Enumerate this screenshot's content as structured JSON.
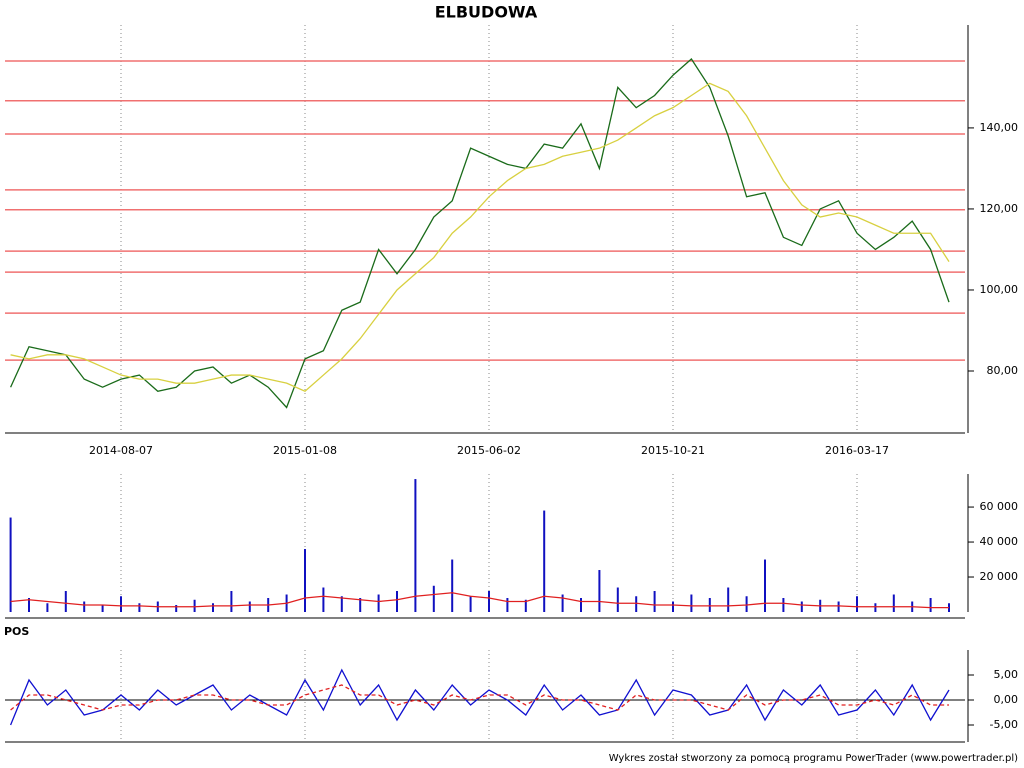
{
  "chart_data": [
    {
      "type": "line",
      "title": "ELBUDOWA",
      "categories": [
        null,
        null,
        null,
        null,
        null,
        null,
        "2014-08-07",
        null,
        null,
        null,
        null,
        null,
        null,
        null,
        null,
        null,
        "2015-01-08",
        null,
        null,
        null,
        null,
        null,
        null,
        null,
        null,
        null,
        "2015-06-02",
        null,
        null,
        null,
        null,
        null,
        null,
        null,
        null,
        null,
        "2015-10-21",
        null,
        null,
        null,
        null,
        null,
        null,
        null,
        null,
        null,
        "2016-03-17",
        null,
        null,
        null,
        null,
        null
      ],
      "series": [
        {
          "color": "#1a6b1a",
          "values": [
            76,
            86,
            85,
            84,
            78,
            76,
            78,
            79,
            75,
            76,
            80,
            81,
            77,
            79,
            76,
            71,
            83,
            85,
            95,
            97,
            110,
            104,
            110,
            118,
            122,
            135,
            133,
            131,
            130,
            136,
            135,
            141,
            130,
            150,
            145,
            148,
            153,
            157,
            150,
            138,
            123,
            124,
            113,
            111,
            120,
            122,
            114,
            110,
            113,
            117,
            110,
            97
          ]
        },
        {
          "color": "#d8d040",
          "values": [
            84,
            83,
            84,
            84,
            83,
            81,
            79,
            78,
            78,
            77,
            77,
            78,
            79,
            79,
            78,
            77,
            75,
            79,
            83,
            88,
            94,
            100,
            104,
            108,
            114,
            118,
            123,
            127,
            130,
            131,
            133,
            134,
            135,
            137,
            140,
            143,
            145,
            148,
            151,
            149,
            143,
            135,
            127,
            121,
            118,
            119,
            118,
            116,
            114,
            114,
            114,
            107
          ]
        }
      ],
      "levels": [
        156.5,
        146.7,
        138.5,
        124.7,
        119.8,
        109.6,
        104.4,
        94.3,
        82.7
      ],
      "level_color": "#f07070",
      "ylim": [
        64.7,
        165.4
      ],
      "yticks": [
        {
          "value": 80,
          "label": "80,00"
        },
        {
          "value": 100,
          "label": "100,00"
        },
        {
          "value": 120,
          "label": "120,00"
        },
        {
          "value": 140,
          "label": "140,00"
        }
      ]
    },
    {
      "type": "bar",
      "series": [
        {
          "color": "#1010c0",
          "values": [
            54000,
            8000,
            5000,
            12000,
            6000,
            4000,
            9000,
            5000,
            6000,
            4000,
            7000,
            5000,
            12000,
            6000,
            8000,
            10000,
            36000,
            14000,
            9000,
            8000,
            10000,
            12000,
            76000,
            15000,
            30000,
            9000,
            12000,
            8000,
            7000,
            58000,
            10000,
            8000,
            24000,
            14000,
            9000,
            12000,
            6000,
            10000,
            8000,
            14000,
            9000,
            30000,
            8000,
            6000,
            7000,
            6000,
            9000,
            5000,
            10000,
            6000,
            8000,
            5000
          ]
        },
        {
          "color": "#e02020",
          "values": [
            6000,
            7000,
            6000,
            5000,
            4000,
            4000,
            3500,
            3500,
            3000,
            3000,
            3000,
            3500,
            3500,
            4000,
            4000,
            5000,
            8000,
            9000,
            8000,
            7000,
            6000,
            7000,
            9000,
            10000,
            11000,
            9000,
            8000,
            6000,
            6000,
            9000,
            8000,
            6000,
            6000,
            5000,
            5000,
            4000,
            4000,
            3500,
            3500,
            3500,
            4000,
            5000,
            5000,
            4000,
            3500,
            3500,
            3000,
            3000,
            3000,
            3000,
            2500,
            2500
          ]
        }
      ],
      "ylim": [
        0,
        78900
      ],
      "yticks": [
        {
          "value": 20000,
          "label": "20 000"
        },
        {
          "value": 40000,
          "label": "40 000"
        },
        {
          "value": 60000,
          "label": "60 000"
        }
      ]
    },
    {
      "type": "line",
      "title": "POS",
      "series": [
        {
          "color": "#1010d0",
          "values": [
            -5,
            4,
            -1,
            2,
            -3,
            -2,
            1,
            -2,
            2,
            -1,
            1,
            3,
            -2,
            1,
            -1,
            -3,
            4,
            -2,
            6,
            -1,
            3,
            -4,
            2,
            -2,
            3,
            -1,
            2,
            0,
            -3,
            3,
            -2,
            1,
            -3,
            -2,
            4,
            -3,
            2,
            1,
            -3,
            -2,
            3,
            -4,
            2,
            -1,
            3,
            -3,
            -2,
            2,
            -3,
            3,
            -4,
            2
          ]
        },
        {
          "color": "#e02020",
          "dashed": true,
          "values": [
            -2,
            1,
            1,
            0,
            -1,
            -2,
            -1,
            -1,
            0,
            0,
            1,
            1,
            0,
            0,
            -1,
            -1,
            1,
            2,
            3,
            1,
            1,
            -1,
            0,
            -1,
            1,
            0,
            1,
            1,
            -1,
            1,
            0,
            0,
            -1,
            -2,
            1,
            0,
            0,
            0,
            -1,
            -2,
            1,
            -1,
            0,
            0,
            1,
            -1,
            -1,
            0,
            -1,
            1,
            -1,
            -1
          ]
        }
      ],
      "ylim": [
        -8.4,
        10
      ],
      "yticks": [
        {
          "value": -5,
          "label": "-5,00"
        },
        {
          "value": 0,
          "label": "0,00"
        },
        {
          "value": 5,
          "label": "5,00"
        }
      ]
    }
  ],
  "footer": "Wykres został stworzony za pomocą programu PowerTrader (www.powertrader.pl)"
}
